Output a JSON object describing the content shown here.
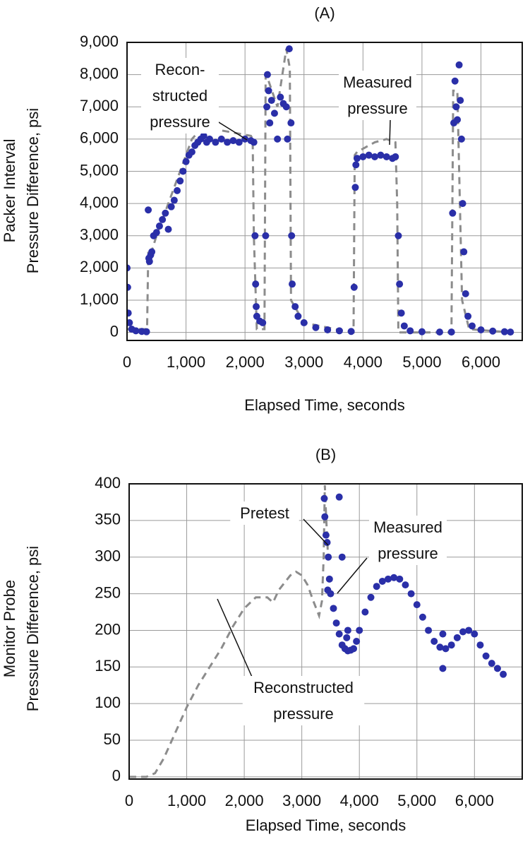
{
  "chart_data": [
    {
      "type": "scatter",
      "title": "(A)",
      "xlabel": "Elapsed Time, seconds",
      "ylabel": [
        "Packer Interval",
        "Pressure Difference, psi"
      ],
      "xlim": [
        0,
        6700
      ],
      "ylim": [
        -250,
        9000
      ],
      "xticks": [
        0,
        {
          "value": 1000,
          "label": "1,000"
        },
        {
          "value": 2000,
          "label": "2,000"
        },
        {
          "value": 3000,
          "label": "3,000"
        },
        {
          "value": 4000,
          "label": "4,000"
        },
        {
          "value": 5000,
          "label": "5,000"
        },
        {
          "value": 6000,
          "label": "6,000"
        }
      ],
      "yticks": [
        0,
        {
          "value": 1000,
          "label": "1,000"
        },
        {
          "value": 2000,
          "label": "2,000"
        },
        {
          "value": 3000,
          "label": "3,000"
        },
        {
          "value": 4000,
          "label": "4,000"
        },
        {
          "value": 5000,
          "label": "5,000"
        },
        {
          "value": 6000,
          "label": "6,000"
        },
        {
          "value": 7000,
          "label": "7,000"
        },
        {
          "value": 8000,
          "label": "8,000"
        },
        {
          "value": 9000,
          "label": "9,000"
        }
      ],
      "grid": true,
      "series": [
        {
          "mode": "line",
          "dash": true,
          "color": "#8c8c8c",
          "x": [
            0,
            340,
            360,
            380,
            500,
            1000,
            1100,
            1200,
            1500,
            1800,
            2100,
            2130,
            2150,
            2200,
            2330,
            2350,
            2400,
            2550,
            2700,
            2760,
            2780,
            3000,
            3800,
            3840,
            3860,
            3900,
            4200,
            4400,
            4550,
            4580,
            4600,
            5500,
            5530,
            5600,
            5680,
            5800,
            6500
          ],
          "values": [
            100,
            100,
            2500,
            2300,
            3000,
            5500,
            6000,
            6200,
            6300,
            6200,
            6100,
            6000,
            3000,
            100,
            100,
            8000,
            7800,
            7000,
            8800,
            8200,
            1000,
            300,
            0,
            0,
            5500,
            5600,
            5900,
            6000,
            5900,
            4000,
            0,
            0,
            7500,
            7500,
            1000,
            100,
            0
          ]
        },
        {
          "mode": "markers",
          "color": "#2a2fa8",
          "x": [
            0,
            10,
            20,
            40,
            80,
            150,
            250,
            330,
            360,
            370,
            380,
            400,
            420,
            450,
            500,
            550,
            600,
            650,
            700,
            750,
            800,
            850,
            900,
            950,
            1000,
            1050,
            1100,
            1150,
            1200,
            1250,
            1300,
            1350,
            1400,
            1500,
            1600,
            1700,
            1800,
            1900,
            2000,
            2100,
            2150,
            2170,
            2180,
            2190,
            2200,
            2250,
            2300,
            2350,
            2370,
            2380,
            2400,
            2420,
            2450,
            2500,
            2550,
            2600,
            2650,
            2700,
            2720,
            2750,
            2780,
            2790,
            2800,
            2850,
            2900,
            3000,
            3200,
            3400,
            3600,
            3800,
            3850,
            3870,
            3880,
            3900,
            4000,
            4100,
            4200,
            4300,
            4400,
            4500,
            4550,
            4600,
            4620,
            4650,
            4700,
            4800,
            5000,
            5300,
            5500,
            5520,
            5540,
            5560,
            5580,
            5600,
            5630,
            5650,
            5670,
            5690,
            5710,
            5740,
            5780,
            5850,
            6000,
            6200,
            6400,
            6500
          ],
          "values": [
            2000,
            1400,
            600,
            300,
            100,
            50,
            30,
            20,
            3800,
            2300,
            2200,
            2400,
            2500,
            3000,
            3100,
            3300,
            3500,
            3700,
            3200,
            3900,
            4100,
            4400,
            4700,
            5000,
            5300,
            5500,
            5600,
            5800,
            5900,
            6000,
            6100,
            5900,
            6000,
            5900,
            6000,
            5900,
            5950,
            5900,
            6000,
            5950,
            5900,
            3000,
            1500,
            800,
            500,
            350,
            300,
            3000,
            7000,
            8000,
            7500,
            6500,
            7200,
            6800,
            6000,
            7300,
            7100,
            7000,
            6000,
            8800,
            6500,
            3000,
            1500,
            800,
            500,
            300,
            150,
            80,
            50,
            30,
            1400,
            4500,
            5200,
            5400,
            5450,
            5500,
            5450,
            5500,
            5450,
            5400,
            5450,
            3000,
            1500,
            600,
            200,
            50,
            20,
            10,
            10,
            3700,
            6500,
            7800,
            7000,
            6600,
            8300,
            7200,
            6000,
            4000,
            2500,
            1200,
            500,
            200,
            80,
            40,
            20,
            10
          ]
        }
      ],
      "annotations": [
        {
          "lines": [
            "Recon-",
            "structed",
            "pressure"
          ]
        },
        {
          "lines": [
            "Measured",
            "pressure"
          ]
        }
      ]
    },
    {
      "type": "scatter",
      "title": "(B)",
      "xlabel": "Elapsed Time, seconds",
      "ylabel": [
        "Monitor Probe",
        "Pressure Difference, psi"
      ],
      "xlim": [
        0,
        6830
      ],
      "ylim": [
        -3,
        400
      ],
      "xticks": [
        0,
        {
          "value": 1000,
          "label": "1,000"
        },
        {
          "value": 2000,
          "label": "2,000"
        },
        {
          "value": 3000,
          "label": "3,000"
        },
        {
          "value": 4000,
          "label": "4,000"
        },
        {
          "value": 5000,
          "label": "5,000"
        },
        {
          "value": 6000,
          "label": "6,000"
        }
      ],
      "yticks": [
        0,
        50,
        100,
        150,
        200,
        250,
        300,
        350,
        400
      ],
      "grid": true,
      "series": [
        {
          "mode": "line",
          "dash": true,
          "color": "#8c8c8c",
          "x": [
            0,
            300,
            450,
            600,
            800,
            1000,
            1200,
            1400,
            1600,
            1800,
            2000,
            2200,
            2400,
            2500,
            2600,
            2800,
            2900,
            3000,
            3100,
            3200,
            3300,
            3350,
            3380,
            3400,
            3420,
            3450
          ],
          "values": [
            0,
            0,
            5,
            25,
            60,
            95,
            125,
            150,
            175,
            205,
            230,
            245,
            245,
            238,
            255,
            275,
            280,
            275,
            262,
            240,
            220,
            240,
            300,
            398,
            360,
            310
          ]
        },
        {
          "mode": "markers",
          "color": "#2a2fa8",
          "x": [
            3390,
            3400,
            3420,
            3440,
            3450,
            3460,
            3480,
            3500,
            3550,
            3600,
            3650,
            3650,
            3700,
            3700,
            3750,
            3780,
            3800,
            3800,
            3850,
            3900,
            3950,
            4000,
            4100,
            4200,
            4300,
            4400,
            4500,
            4600,
            4700,
            4800,
            4900,
            5000,
            5100,
            5200,
            5300,
            5400,
            5450,
            5450,
            5500,
            5600,
            5700,
            5800,
            5900,
            6000,
            6100,
            6200,
            6300,
            6400,
            6500
          ],
          "values": [
            380,
            355,
            330,
            320,
            255,
            300,
            270,
            250,
            230,
            210,
            195,
            382,
            180,
            300,
            175,
            190,
            172,
            200,
            173,
            175,
            185,
            200,
            225,
            245,
            260,
            267,
            270,
            272,
            270,
            262,
            250,
            235,
            218,
            200,
            185,
            177,
            195,
            148,
            175,
            180,
            190,
            198,
            200,
            195,
            180,
            165,
            155,
            148,
            140
          ]
        }
      ],
      "annotations": [
        {
          "lines": [
            "Pretest"
          ]
        },
        {
          "lines": [
            "Measured",
            "pressure"
          ]
        },
        {
          "lines": [
            "Reconstructed",
            "pressure"
          ]
        }
      ]
    }
  ]
}
